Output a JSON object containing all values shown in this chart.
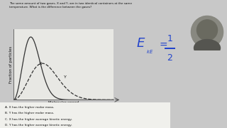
{
  "title_text1": "The same amount of two gases, X and Y, are in two identical containers at the same",
  "title_text2": "temperature. What is the difference between the gases?",
  "xlabel": "Molecular speed",
  "ylabel": "Fraction of particles",
  "answer_a": "A. X has the higher molar mass.",
  "answer_b": "B. Y has the higher molar mass.",
  "answer_c": "C. X has the higher average kinetic energy.",
  "answer_d": "D. Y has the higher average kinetic energy.",
  "bg_color": "#c8c8c8",
  "plot_bg": "#e8e8e4",
  "text_color": "#111111",
  "curve_color": "#333333",
  "grid_color": "#b0b0b0",
  "eq_color": "#2244cc",
  "answer_area_color": "#f0f0ec",
  "photo_color": "#888880"
}
